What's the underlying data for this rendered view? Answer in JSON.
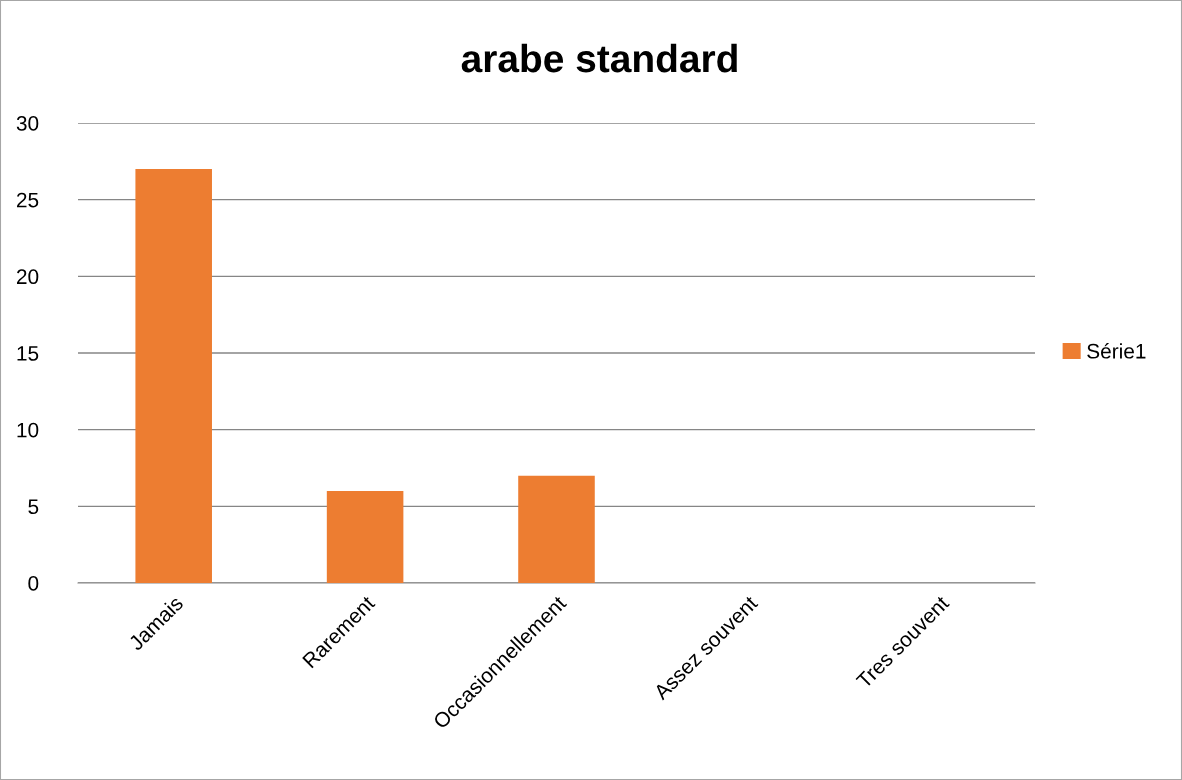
{
  "chart_data": {
    "type": "bar",
    "title": "arabe standard",
    "categories": [
      "Jamais",
      "Rarement",
      "Occasionnellement",
      "Assez souvent",
      "Tres souvent"
    ],
    "series": [
      {
        "name": "Série1",
        "color": "#ed7d31",
        "values": [
          27,
          6,
          7,
          0,
          0
        ]
      }
    ],
    "ylim": [
      0,
      30
    ],
    "yticks": [
      0,
      5,
      10,
      15,
      20,
      25,
      30
    ],
    "grid": "y",
    "legend": "right"
  }
}
